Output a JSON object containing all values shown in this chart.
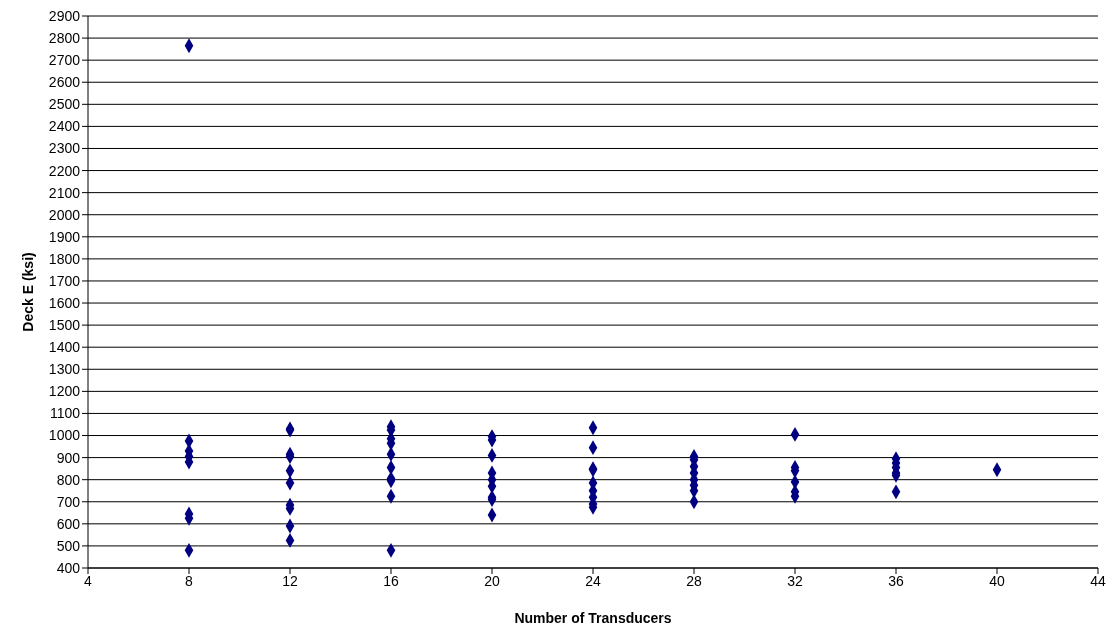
{
  "chart_data": {
    "type": "scatter",
    "xlabel": "Number of Transducers",
    "ylabel": "Deck E (ksi)",
    "x": [
      8,
      8,
      8,
      8,
      8,
      8,
      8,
      8,
      12,
      12,
      12,
      12,
      12,
      12,
      12,
      12,
      12,
      12,
      16,
      16,
      16,
      16,
      16,
      16,
      16,
      16,
      16,
      16,
      20,
      20,
      20,
      20,
      20,
      20,
      20,
      20,
      20,
      24,
      24,
      24,
      24,
      24,
      24,
      24,
      24,
      24,
      28,
      28,
      28,
      28,
      28,
      28,
      28,
      28,
      32,
      32,
      32,
      32,
      32,
      32,
      36,
      36,
      36,
      36,
      36,
      36,
      40
    ],
    "series": [
      {
        "color": "#000080",
        "values": [
          2765,
          975,
          930,
          905,
          880,
          645,
          625,
          480,
          1030,
          1025,
          915,
          905,
          840,
          785,
          685,
          670,
          590,
          525,
          1040,
          1025,
          985,
          965,
          915,
          855,
          805,
          795,
          725,
          480,
          995,
          980,
          910,
          830,
          800,
          770,
          720,
          710,
          640,
          1035,
          945,
          850,
          845,
          785,
          750,
          720,
          690,
          675,
          905,
          890,
          860,
          830,
          800,
          775,
          750,
          700,
          1005,
          855,
          840,
          790,
          745,
          725,
          895,
          875,
          855,
          830,
          820,
          745,
          845
        ]
      }
    ],
    "xlim": [
      4,
      44
    ],
    "xticks": [
      4,
      8,
      12,
      16,
      20,
      24,
      28,
      32,
      36,
      40,
      44
    ],
    "ylim": [
      400,
      2900
    ],
    "yticks": [
      400,
      500,
      600,
      700,
      800,
      900,
      1000,
      1100,
      1200,
      1300,
      1400,
      1500,
      1600,
      1700,
      1800,
      1900,
      2000,
      2100,
      2200,
      2300,
      2400,
      2500,
      2600,
      2700,
      2800,
      2900
    ],
    "grid": "y",
    "marker": "diamond",
    "legend": false
  }
}
